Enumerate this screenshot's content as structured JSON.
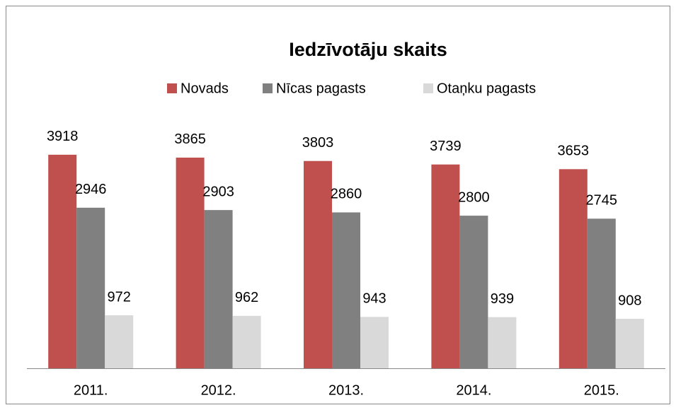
{
  "chart_data": {
    "type": "bar",
    "title": "Iedzīvotāju skaits",
    "categories": [
      "2011.",
      "2012.",
      "2013.",
      "2014.",
      "2015."
    ],
    "series": [
      {
        "name": "Novads",
        "color": "#c0504d",
        "values": [
          3918,
          3865,
          3803,
          3739,
          3653
        ]
      },
      {
        "name": "Nīcas pagasts",
        "color": "#808080",
        "values": [
          2946,
          2903,
          2860,
          2800,
          2745
        ]
      },
      {
        "name": "Otaņku pagasts",
        "color": "#d9d9d9",
        "values": [
          972,
          962,
          943,
          939,
          908
        ]
      }
    ],
    "ylim": [
      0,
      4500
    ],
    "legend": "top"
  }
}
